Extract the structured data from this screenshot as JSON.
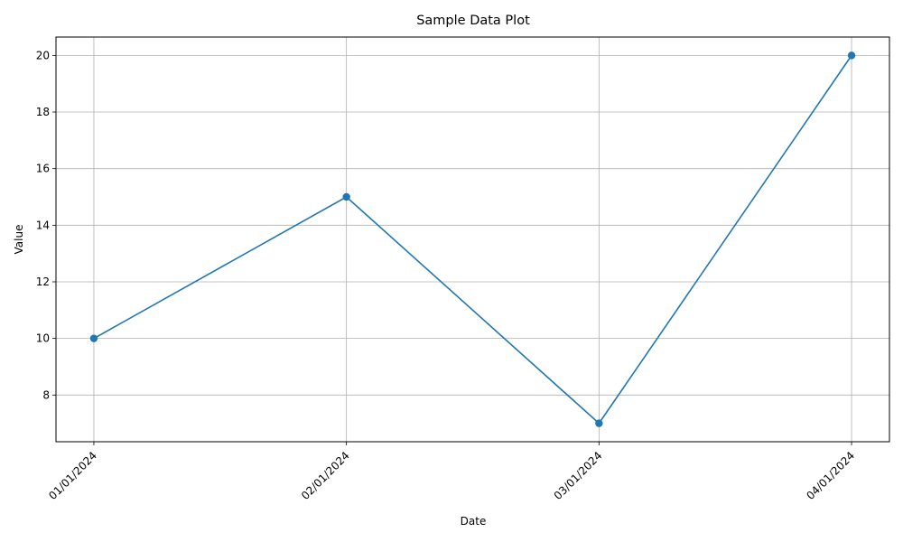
{
  "chart_data": {
    "type": "line",
    "title": "Sample Data Plot",
    "xlabel": "Date",
    "ylabel": "Value",
    "categories": [
      "01/01/2024",
      "02/01/2024",
      "03/01/2024",
      "04/01/2024"
    ],
    "series": [
      {
        "values": [
          10,
          15,
          7,
          20
        ],
        "color": "#1f77b4",
        "marker": "circle"
      }
    ],
    "yticks": [
      8,
      10,
      12,
      14,
      16,
      18,
      20
    ],
    "ylim": [
      6.35,
      20.65
    ],
    "grid": true,
    "legend": "none"
  }
}
